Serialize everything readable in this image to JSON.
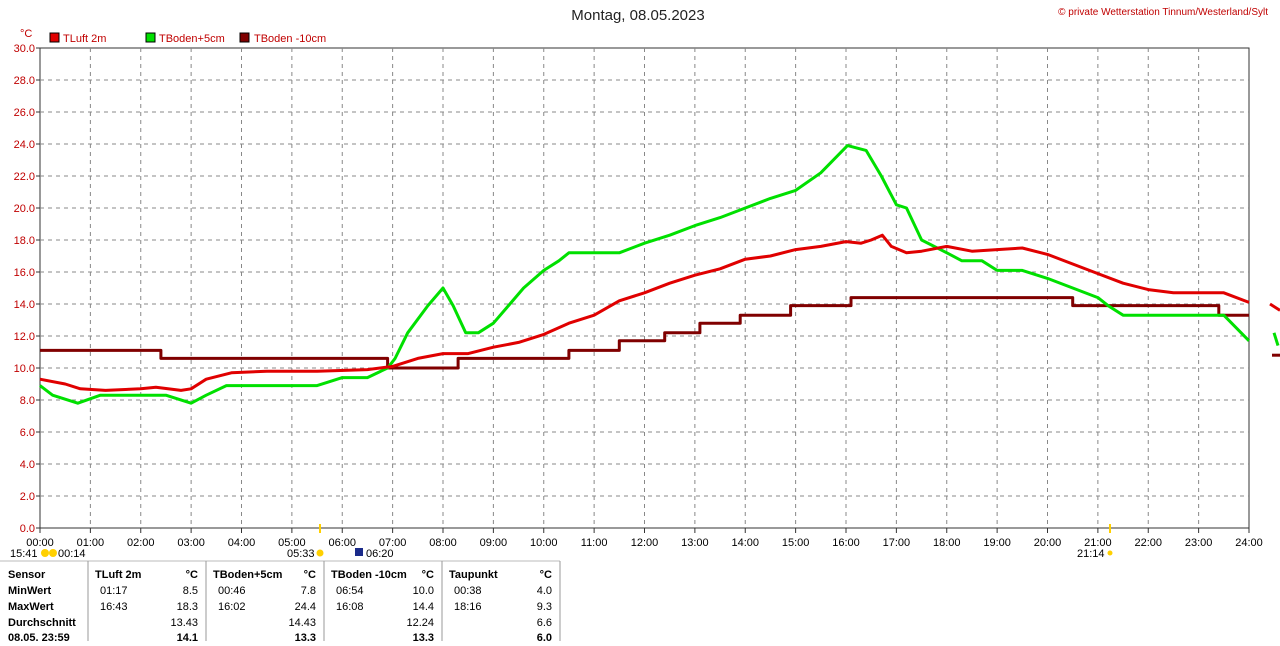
{
  "header": {
    "title": "Montag, 08.05.2023",
    "copyright": "© private Wetterstation Tinnum/Westerland/Sylt"
  },
  "colors": {
    "luft": "#e00000",
    "boden5": "#00e000",
    "boden10": "#800000",
    "axis_text": "#c00000"
  },
  "chart_data": {
    "type": "line",
    "ylabel": "°C",
    "ylim": [
      0,
      30
    ],
    "yticks": [
      "0.0",
      "2.0",
      "4.0",
      "6.0",
      "8.0",
      "10.0",
      "12.0",
      "14.0",
      "16.0",
      "18.0",
      "20.0",
      "22.0",
      "24.0",
      "26.0",
      "28.0",
      "30.0"
    ],
    "xlim": [
      0,
      24
    ],
    "xticks": [
      "00:00",
      "01:00",
      "02:00",
      "03:00",
      "04:00",
      "05:00",
      "06:00",
      "07:00",
      "08:00",
      "09:00",
      "10:00",
      "11:00",
      "12:00",
      "13:00",
      "14:00",
      "15:00",
      "16:00",
      "17:00",
      "18:00",
      "19:00",
      "20:00",
      "21:00",
      "22:00",
      "23:00",
      "24:00"
    ],
    "grid": true,
    "legend_placement": "top-left",
    "series": [
      {
        "name": "TLuft 2m",
        "x": [
          0,
          0.5,
          0.8,
          1.3,
          2.0,
          2.3,
          2.8,
          3.0,
          3.3,
          3.8,
          4.5,
          5.5,
          6.5,
          7.0,
          7.5,
          8.0,
          8.5,
          9.0,
          9.5,
          10.0,
          10.5,
          11.0,
          11.5,
          12.0,
          12.5,
          13.0,
          13.5,
          14.0,
          14.5,
          15.0,
          15.5,
          16.0,
          16.3,
          16.5,
          16.72,
          16.9,
          17.2,
          17.5,
          18.0,
          18.5,
          19.0,
          19.5,
          20.0,
          20.5,
          21.0,
          21.5,
          22.0,
          22.5,
          23.0,
          23.5,
          24.0
        ],
        "values": [
          9.3,
          9.0,
          8.7,
          8.6,
          8.7,
          8.8,
          8.6,
          8.7,
          9.3,
          9.7,
          9.8,
          9.8,
          9.9,
          10.1,
          10.6,
          10.9,
          10.9,
          11.3,
          11.6,
          12.1,
          12.8,
          13.3,
          14.2,
          14.7,
          15.3,
          15.8,
          16.2,
          16.8,
          17.0,
          17.4,
          17.6,
          17.9,
          17.8,
          18.0,
          18.3,
          17.6,
          17.2,
          17.3,
          17.6,
          17.3,
          17.4,
          17.5,
          17.1,
          16.5,
          15.9,
          15.3,
          14.9,
          14.7,
          14.7,
          14.7,
          14.1
        ]
      },
      {
        "name": "TBoden+5cm",
        "x": [
          0,
          0.25,
          0.75,
          1.2,
          2.5,
          3.0,
          3.3,
          3.7,
          4.5,
          5.0,
          5.5,
          6.0,
          6.5,
          6.9,
          7.05,
          7.3,
          7.7,
          8.0,
          8.2,
          8.45,
          8.7,
          9.0,
          9.3,
          9.6,
          10.0,
          10.3,
          10.5,
          11.0,
          11.5,
          12.0,
          12.5,
          13.0,
          13.5,
          14.0,
          14.5,
          15.0,
          15.5,
          16.03,
          16.4,
          16.7,
          17.0,
          17.2,
          17.5,
          18.0,
          18.3,
          18.7,
          19.0,
          19.5,
          20.0,
          20.5,
          21.0,
          21.2,
          21.5,
          22.0,
          22.5,
          23.0,
          23.5,
          24.0
        ],
        "values": [
          8.9,
          8.3,
          7.8,
          8.3,
          8.3,
          7.8,
          8.3,
          8.9,
          8.9,
          8.9,
          8.9,
          9.4,
          9.4,
          10.0,
          10.6,
          12.2,
          13.9,
          15.0,
          13.9,
          12.2,
          12.2,
          12.8,
          13.9,
          15.0,
          16.1,
          16.7,
          17.2,
          17.2,
          17.2,
          17.8,
          18.3,
          18.9,
          19.4,
          20.0,
          20.6,
          21.1,
          22.2,
          23.9,
          23.6,
          22.0,
          20.2,
          20.0,
          18.0,
          17.2,
          16.7,
          16.7,
          16.1,
          16.1,
          15.6,
          15.0,
          14.4,
          13.9,
          13.3,
          13.3,
          13.3,
          13.3,
          13.3,
          11.7
        ]
      },
      {
        "name": "TBoden -10cm",
        "x": [
          0,
          2.4,
          2.4,
          6.9,
          6.9,
          8.3,
          8.3,
          10.5,
          10.5,
          11.5,
          11.5,
          12.4,
          12.4,
          13.1,
          13.1,
          13.9,
          13.9,
          14.9,
          14.9,
          16.1,
          16.1,
          20.5,
          20.5,
          23.4,
          23.4,
          24.0
        ],
        "values": [
          11.1,
          11.1,
          10.6,
          10.6,
          10.0,
          10.0,
          10.6,
          10.6,
          11.1,
          11.1,
          11.7,
          11.7,
          12.2,
          12.2,
          12.8,
          12.8,
          13.3,
          13.3,
          13.9,
          13.9,
          14.4,
          14.4,
          13.9,
          13.9,
          13.3,
          13.3
        ]
      }
    ]
  },
  "sun": {
    "twilight_start": "15:41",
    "sunrise_icon_time": "00:14",
    "sunrise": "05:33",
    "moonrise": "06:20",
    "sunset": "21:14"
  },
  "stats": {
    "headers": [
      "Sensor",
      "TLuft 2m",
      "°C",
      "TBoden+5cm",
      "°C",
      "TBoden -10cm",
      "°C",
      "Taupunkt",
      "°C"
    ],
    "rows": [
      {
        "label": "MinWert",
        "luft_t": "01:17",
        "luft_v": "8.5",
        "b5_t": "00:46",
        "b5_v": "7.8",
        "b10_t": "06:54",
        "b10_v": "10.0",
        "tp_t": "00:38",
        "tp_v": "4.0"
      },
      {
        "label": "MaxWert",
        "luft_t": "16:43",
        "luft_v": "18.3",
        "b5_t": "16:02",
        "b5_v": "24.4",
        "b10_t": "16:08",
        "b10_v": "14.4",
        "tp_t": "18:16",
        "tp_v": "9.3"
      },
      {
        "label": "Durchschnitt",
        "luft_t": "",
        "luft_v": "13.43",
        "b5_t": "",
        "b5_v": "14.43",
        "b10_t": "",
        "b10_v": "12.24",
        "tp_t": "",
        "tp_v": "6.6"
      },
      {
        "label": "08.05. 23:59",
        "luft_t": "",
        "luft_v": "14.1",
        "b5_t": "",
        "b5_v": "13.3",
        "b10_t": "",
        "b10_v": "13.3",
        "tp_t": "",
        "tp_v": "6.0"
      }
    ]
  }
}
